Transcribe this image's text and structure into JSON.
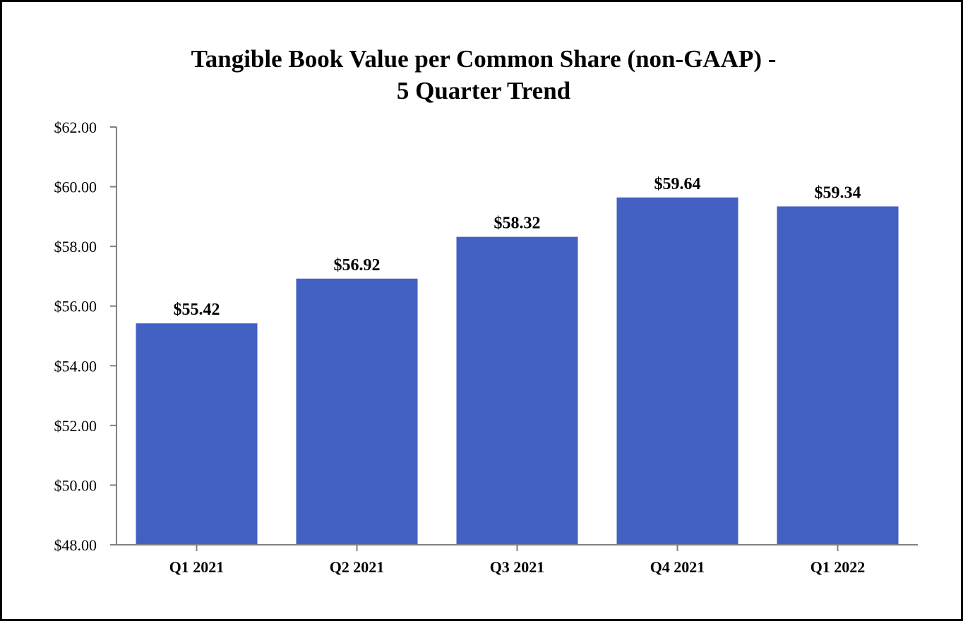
{
  "chart_data": {
    "type": "bar",
    "title_lines": [
      "Tangible Book Value per Common Share (non-GAAP) -",
      "5 Quarter Trend"
    ],
    "categories": [
      "Q1 2021",
      "Q2 2021",
      "Q3 2021",
      "Q4 2021",
      "Q1 2022"
    ],
    "values": [
      55.42,
      56.92,
      58.32,
      59.64,
      59.34
    ],
    "data_labels": [
      "$55.42",
      "$56.92",
      "$58.32",
      "$59.64",
      "$59.34"
    ],
    "ylim": [
      48,
      62
    ],
    "yticks": [
      48,
      50,
      52,
      54,
      56,
      58,
      60,
      62
    ],
    "ytick_labels": [
      "$48.00",
      "$50.00",
      "$52.00",
      "$54.00",
      "$56.00",
      "$58.00",
      "$60.00",
      "$62.00"
    ],
    "xlabel": "",
    "ylabel": "",
    "grid": false,
    "legend": "none",
    "bar_color": "#4360C3",
    "axis_color": "#808080"
  }
}
